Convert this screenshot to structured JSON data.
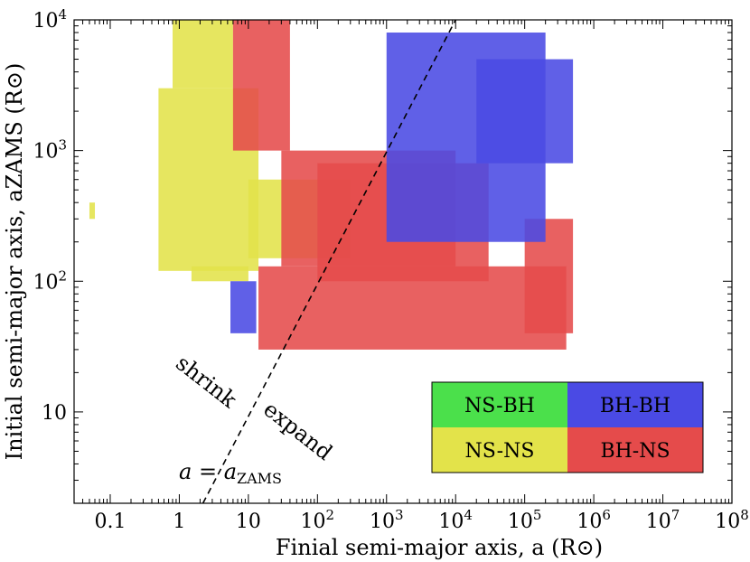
{
  "chart_data": {
    "type": "heatmap",
    "xlabel": "Finial semi-major axis, a (R⊙)",
    "ylabel": "Initial semi-major axis, aZAMS (R⊙)",
    "x_scale": "log",
    "y_scale": "log",
    "xlim": [
      0.03,
      100000000
    ],
    "ylim": [
      2,
      10000
    ],
    "grid": false,
    "x_ticks": [
      {
        "value": 0.1,
        "label": "0.1"
      },
      {
        "value": 1,
        "label": "1"
      },
      {
        "value": 10,
        "label": "10"
      },
      {
        "value": 100,
        "base": "10",
        "exp": "2"
      },
      {
        "value": 1000,
        "base": "10",
        "exp": "3"
      },
      {
        "value": 10000,
        "base": "10",
        "exp": "4"
      },
      {
        "value": 100000,
        "base": "10",
        "exp": "5"
      },
      {
        "value": 1000000,
        "base": "10",
        "exp": "6"
      },
      {
        "value": 10000000,
        "base": "10",
        "exp": "7"
      },
      {
        "value": 100000000,
        "base": "10",
        "exp": "8"
      }
    ],
    "y_ticks": [
      {
        "value": 10,
        "label": "10"
      },
      {
        "value": 100,
        "base": "10",
        "exp": "2"
      },
      {
        "value": 1000,
        "base": "10",
        "exp": "3"
      },
      {
        "value": 10000,
        "base": "10",
        "exp": "4"
      }
    ],
    "series": [
      {
        "name": "NS-NS",
        "color": "#e3e34a",
        "regions": [
          {
            "x": [
              0.5,
              14
            ],
            "y": [
              120,
              3000
            ]
          },
          {
            "x": [
              0.8,
              6
            ],
            "y": [
              3000,
              10000
            ]
          },
          {
            "x": [
              1.5,
              10
            ],
            "y": [
              100,
              130
            ]
          },
          {
            "x": [
              10,
              300
            ],
            "y": [
              150,
              600
            ]
          },
          {
            "x": [
              0.05,
              0.06
            ],
            "y": [
              300,
              400
            ]
          }
        ]
      },
      {
        "name": "BH-NS",
        "color": "#e54b4b",
        "regions": [
          {
            "x": [
              6,
              40
            ],
            "y": [
              1000,
              10000
            ]
          },
          {
            "x": [
              14,
              400000
            ],
            "y": [
              30,
              130
            ]
          },
          {
            "x": [
              30,
              10000
            ],
            "y": [
              130,
              1000
            ]
          },
          {
            "x": [
              100,
              30000
            ],
            "y": [
              100,
              800
            ]
          },
          {
            "x": [
              100000,
              500000
            ],
            "y": [
              40,
              300
            ]
          }
        ]
      },
      {
        "name": "BH-BH",
        "color": "#4a4ae4",
        "regions": [
          {
            "x": [
              5.5,
              13
            ],
            "y": [
              40,
              100
            ]
          },
          {
            "x": [
              1000,
              200000
            ],
            "y": [
              200,
              8000
            ]
          },
          {
            "x": [
              20000,
              500000
            ],
            "y": [
              800,
              5000
            ]
          }
        ]
      },
      {
        "name": "NS-BH",
        "color": "#4be04b",
        "regions": []
      }
    ],
    "reference_line": {
      "label_lhs": "a",
      "label_rhs_base": "a",
      "label_rhs_sub": "ZAMS",
      "equation_symbol": "=",
      "points": [
        {
          "x": 2.2,
          "y": 2
        },
        {
          "x": 10000,
          "y": 10000
        }
      ]
    },
    "annotations": [
      "shrink",
      "expand"
    ],
    "legend": {
      "placement": "bottom-right",
      "entries": [
        {
          "name": "NS-BH",
          "color": "#4be04b"
        },
        {
          "name": "BH-BH",
          "color": "#4a4ae4"
        },
        {
          "name": "NS-NS",
          "color": "#e3e34a"
        },
        {
          "name": "BH-NS",
          "color": "#e54b4b"
        }
      ]
    }
  }
}
